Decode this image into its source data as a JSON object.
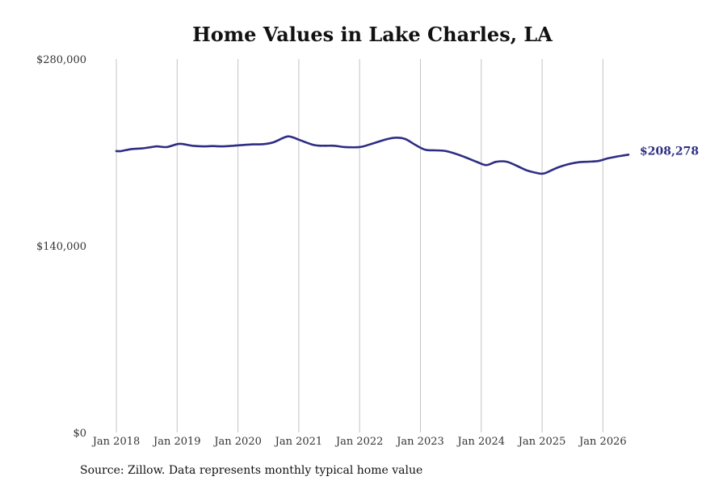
{
  "chart_data": {
    "type": "line",
    "title": "Home Values in Lake Charles, LA",
    "source": "Source: Zillow. Data represents monthly typical home value",
    "ylim": [
      0,
      280000
    ],
    "y_ticks": [
      {
        "value": 0,
        "label": "$0"
      },
      {
        "value": 140000,
        "label": "$140,000"
      },
      {
        "value": 280000,
        "label": "$280,000"
      }
    ],
    "x_ticks": [
      {
        "year": 2018,
        "label": "Jan 2018"
      },
      {
        "year": 2019,
        "label": "Jan 2019"
      },
      {
        "year": 2020,
        "label": "Jan 2020"
      },
      {
        "year": 2021,
        "label": "Jan 2021"
      },
      {
        "year": 2022,
        "label": "Jan 2022"
      },
      {
        "year": 2023,
        "label": "Jan 2023"
      },
      {
        "year": 2024,
        "label": "Jan 2024"
      },
      {
        "year": 2025,
        "label": "Jan 2025"
      },
      {
        "year": 2026,
        "label": "Jan 2026"
      }
    ],
    "xlim": [
      2018,
      2026.42
    ],
    "grid": "vertical",
    "line_color": "#2e2d84",
    "end_label": "$208,278",
    "series": [
      {
        "points": [
          [
            2018.0,
            211000
          ],
          [
            2018.08,
            211000
          ],
          [
            2018.25,
            212500
          ],
          [
            2018.42,
            213000
          ],
          [
            2018.58,
            214000
          ],
          [
            2018.67,
            214500
          ],
          [
            2018.83,
            214000
          ],
          [
            2019.0,
            216200
          ],
          [
            2019.08,
            216300
          ],
          [
            2019.25,
            215000
          ],
          [
            2019.42,
            214500
          ],
          [
            2019.58,
            214700
          ],
          [
            2019.75,
            214500
          ],
          [
            2019.92,
            215000
          ],
          [
            2020.08,
            215500
          ],
          [
            2020.25,
            216000
          ],
          [
            2020.42,
            216200
          ],
          [
            2020.58,
            217500
          ],
          [
            2020.75,
            221000
          ],
          [
            2020.83,
            222000
          ],
          [
            2020.92,
            221000
          ],
          [
            2021.0,
            219500
          ],
          [
            2021.25,
            215500
          ],
          [
            2021.42,
            215000
          ],
          [
            2021.58,
            215000
          ],
          [
            2021.75,
            214000
          ],
          [
            2022.0,
            214000
          ],
          [
            2022.17,
            216000
          ],
          [
            2022.42,
            219500
          ],
          [
            2022.58,
            221000
          ],
          [
            2022.75,
            220000
          ],
          [
            2022.92,
            215500
          ],
          [
            2023.08,
            212000
          ],
          [
            2023.25,
            211500
          ],
          [
            2023.42,
            211000
          ],
          [
            2023.67,
            207500
          ],
          [
            2023.92,
            203000
          ],
          [
            2024.08,
            200500
          ],
          [
            2024.25,
            203000
          ],
          [
            2024.42,
            203000
          ],
          [
            2024.58,
            200000
          ],
          [
            2024.75,
            196500
          ],
          [
            2024.92,
            194500
          ],
          [
            2025.0,
            194000
          ],
          [
            2025.08,
            195000
          ],
          [
            2025.25,
            198500
          ],
          [
            2025.42,
            201000
          ],
          [
            2025.58,
            202500
          ],
          [
            2025.75,
            203000
          ],
          [
            2025.92,
            203500
          ],
          [
            2026.08,
            205500
          ],
          [
            2026.25,
            207000
          ],
          [
            2026.42,
            208278
          ]
        ]
      }
    ]
  }
}
